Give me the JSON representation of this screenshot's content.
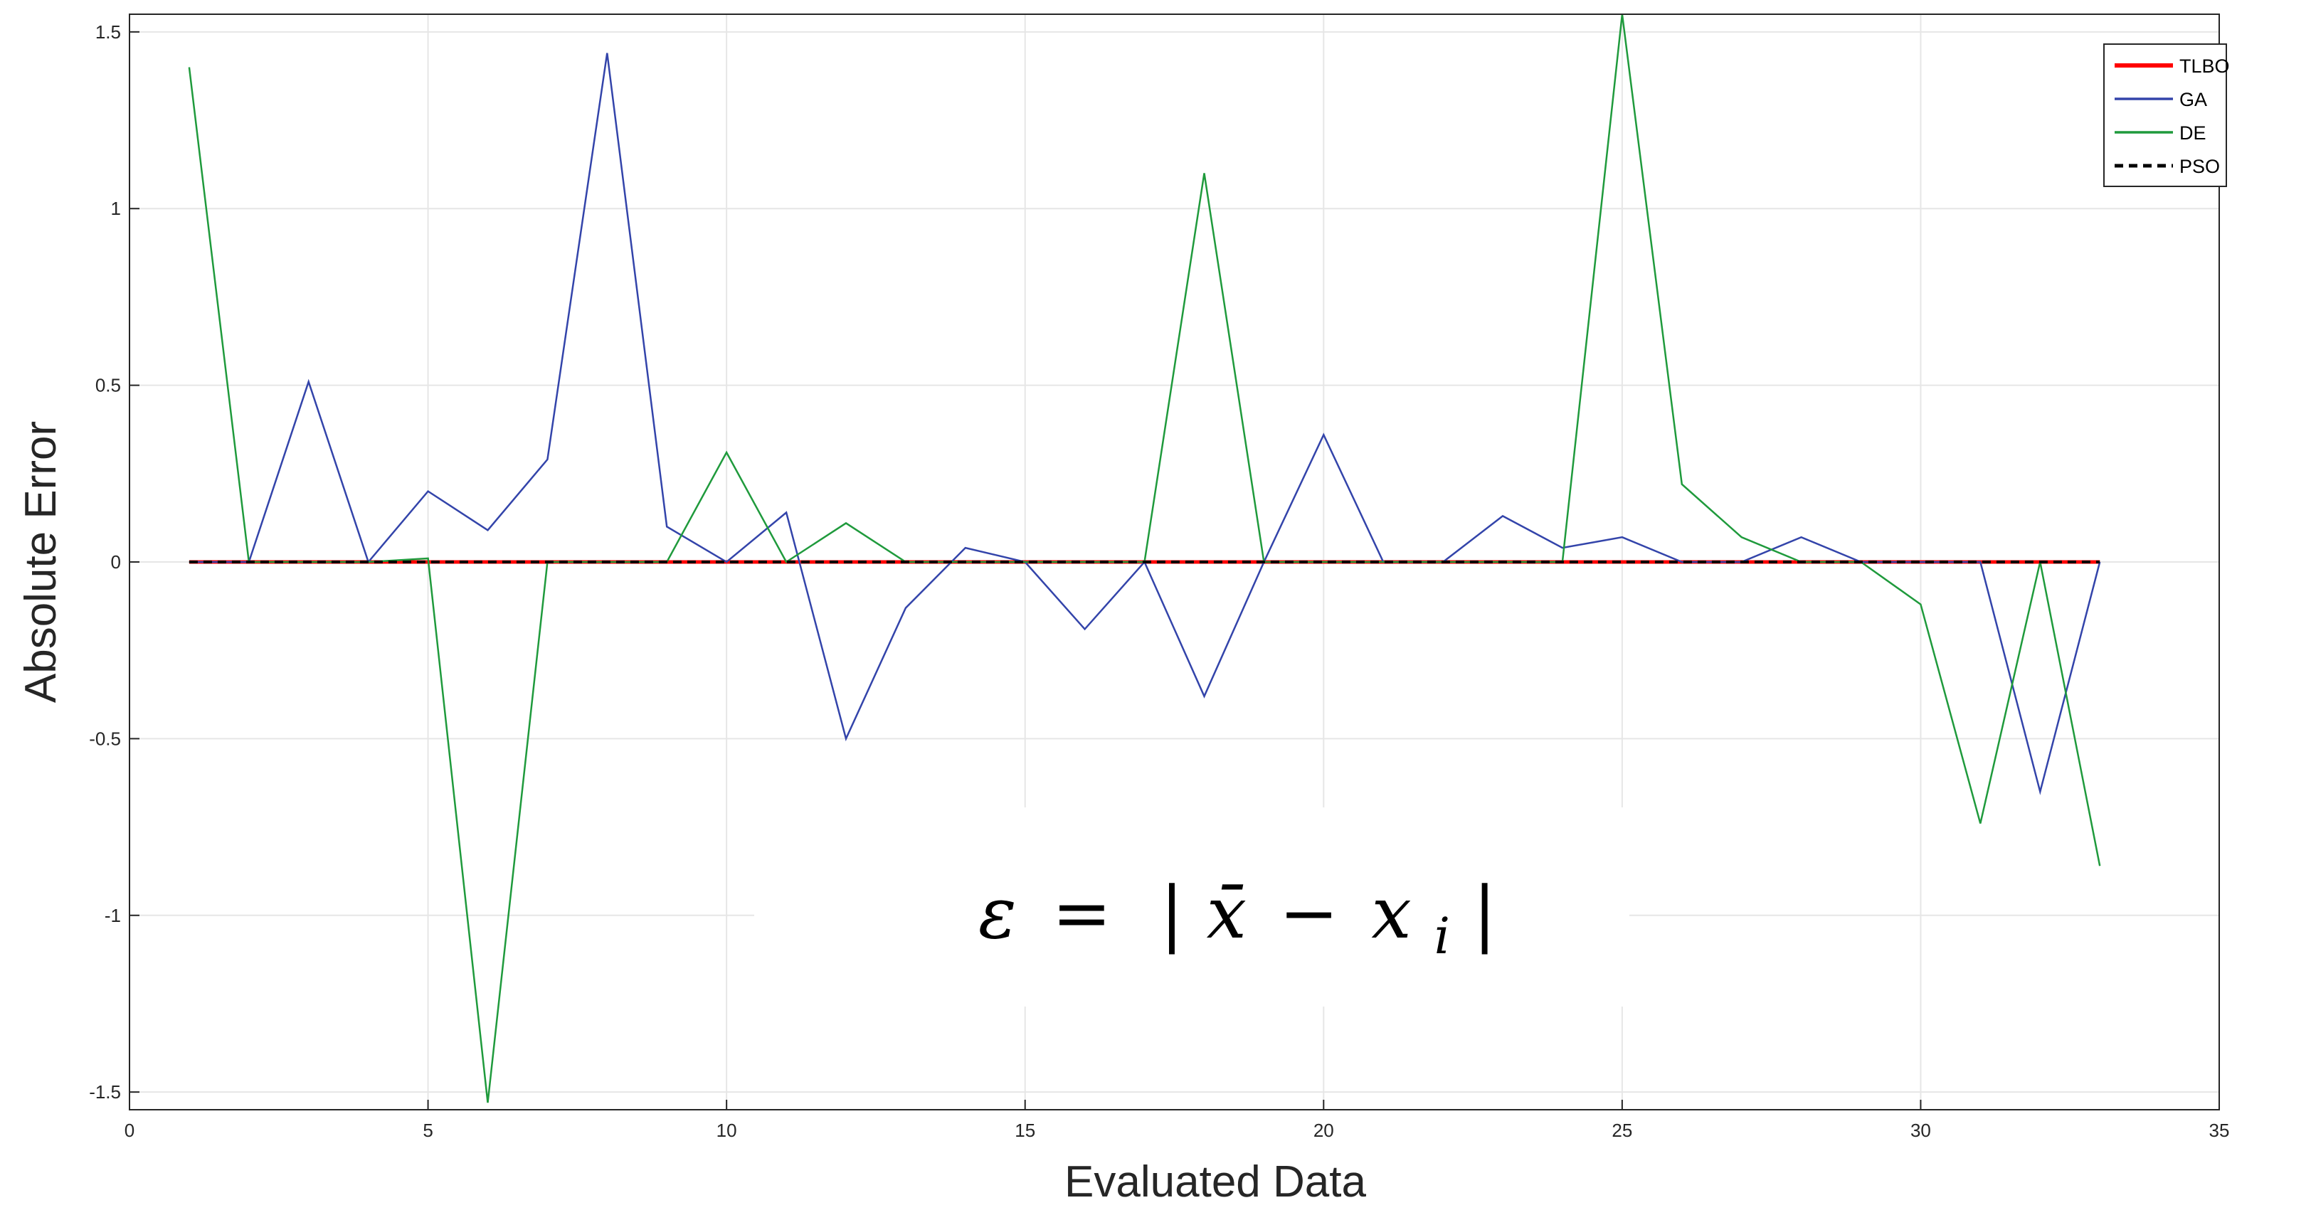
{
  "chart_data": {
    "type": "line",
    "xlabel": "Evaluated Data",
    "ylabel": "Absolute Error",
    "xlim": [
      0,
      35
    ],
    "ylim": [
      -1.55,
      1.55
    ],
    "xticks": [
      0,
      5,
      10,
      15,
      20,
      25,
      30,
      35
    ],
    "yticks": [
      -1.5,
      -1,
      -0.5,
      0,
      0.5,
      1,
      1.5
    ],
    "xtick_labels": [
      "0",
      "5",
      "10",
      "15",
      "20",
      "25",
      "30",
      "35"
    ],
    "ytick_labels": [
      "-1.5",
      "-1",
      "-0.5",
      "0",
      "0.5",
      "1",
      "1.5"
    ],
    "grid": true,
    "legend_position": "top-right",
    "annotation": {
      "lhs": "ε",
      "eq": "=",
      "bar_x": "x̄",
      "minus": "−",
      "x": "x",
      "sub": "i"
    },
    "x": [
      1,
      2,
      3,
      4,
      5,
      6,
      7,
      8,
      9,
      10,
      11,
      12,
      13,
      14,
      15,
      16,
      17,
      18,
      19,
      20,
      21,
      22,
      23,
      24,
      25,
      26,
      27,
      28,
      29,
      30,
      31,
      32,
      33
    ],
    "series": [
      {
        "name": "TLBO",
        "color": "#ff0000",
        "style": "solid",
        "width": 5,
        "values": [
          0,
          0,
          0,
          0,
          0,
          0,
          0,
          0,
          0,
          0,
          0,
          0,
          0,
          0,
          0,
          0,
          0,
          0,
          0,
          0,
          0,
          0,
          0,
          0,
          0,
          0,
          0,
          0,
          0,
          0,
          0,
          0,
          0
        ]
      },
      {
        "name": "GA",
        "color": "#3344aa",
        "style": "solid",
        "width": 2.5,
        "values": [
          0,
          0,
          0.51,
          0,
          0.2,
          0.09,
          0.29,
          1.44,
          0.1,
          0,
          0.14,
          -0.5,
          -0.13,
          0.04,
          0,
          -0.19,
          0,
          -0.38,
          0,
          0.36,
          0,
          0,
          0.13,
          0.04,
          0.07,
          0,
          0,
          0.07,
          0,
          0,
          0,
          -0.65,
          0
        ]
      },
      {
        "name": "DE",
        "color": "#1f9a3c",
        "style": "solid",
        "width": 2.5,
        "values": [
          1.4,
          0,
          0,
          0,
          0.01,
          -1.53,
          0,
          0,
          0,
          0.31,
          0,
          0.11,
          0,
          0,
          0,
          0,
          0,
          1.1,
          0,
          0,
          0,
          0,
          0,
          0,
          1.55,
          0.22,
          0.07,
          0,
          0,
          -0.12,
          -0.74,
          0,
          -0.86
        ]
      },
      {
        "name": "PSO",
        "color": "#000000",
        "style": "dashed",
        "width": 4,
        "values": [
          0,
          0,
          0,
          0,
          0,
          0,
          0,
          0,
          0,
          0,
          0,
          0,
          0,
          0,
          0,
          0,
          0,
          0,
          0,
          0,
          0,
          0,
          0,
          0,
          0,
          0,
          0,
          0,
          0,
          0,
          0,
          0,
          0
        ]
      }
    ]
  }
}
